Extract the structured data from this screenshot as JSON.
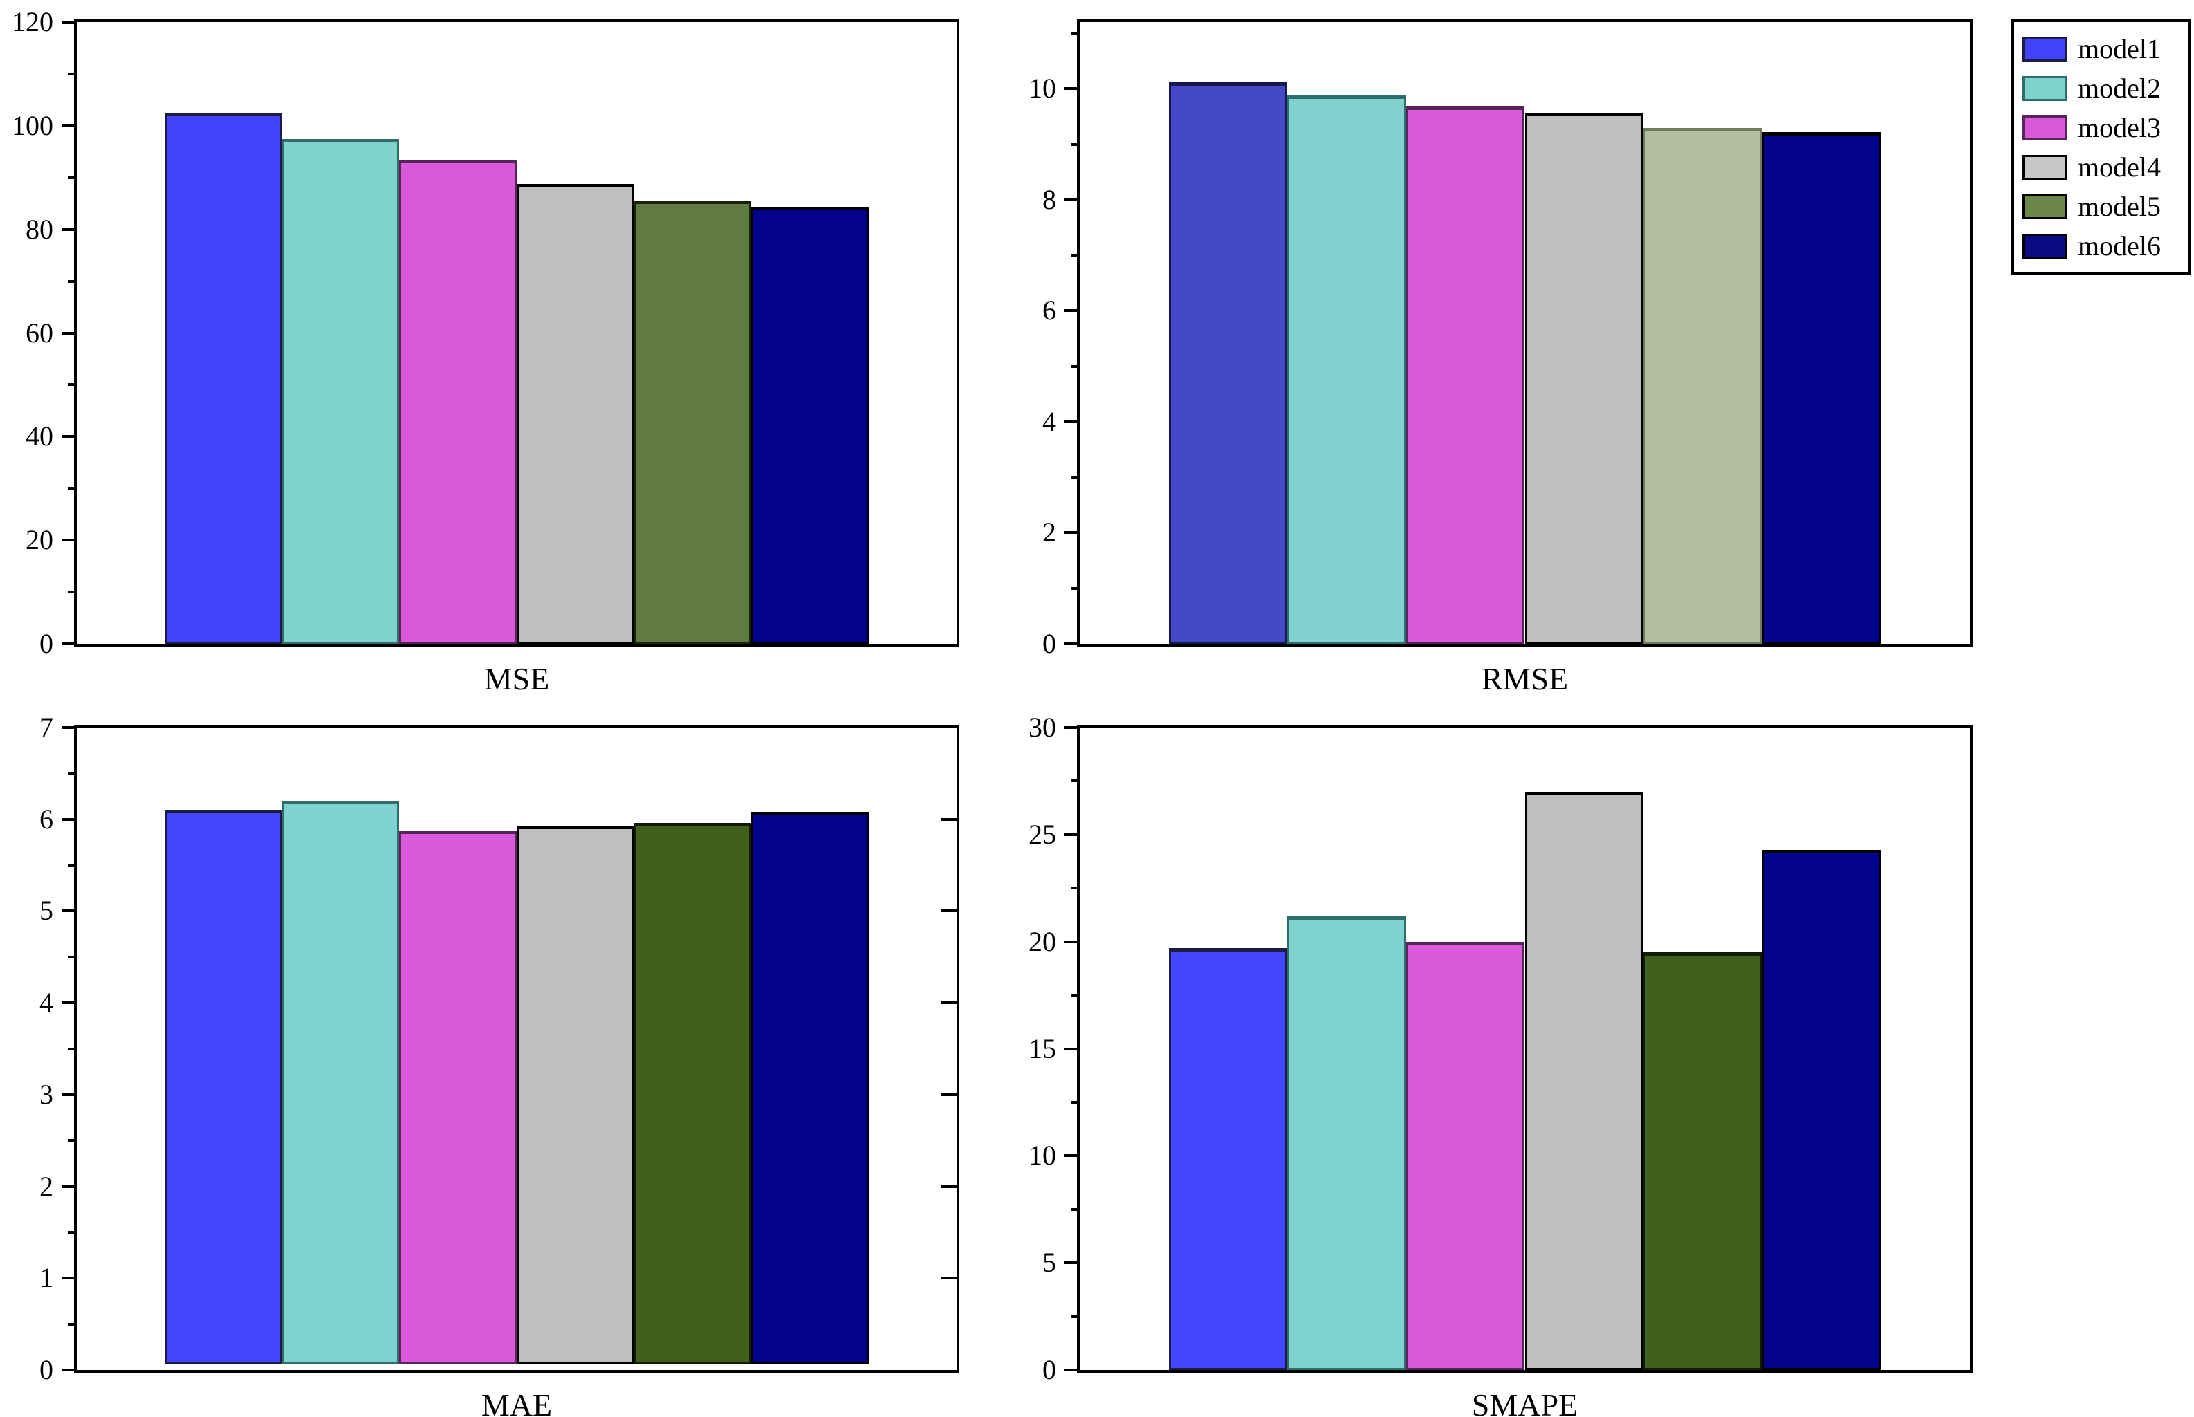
{
  "figure": {
    "background": "#ffffff",
    "description": "2x2 grid of bar charts comparing six models on four error metrics"
  },
  "legend": {
    "position": "top-right",
    "entries": [
      {
        "label": "model1",
        "color": "#4144fb",
        "border": "#1c1c45"
      },
      {
        "label": "model2",
        "color": "#80d2cd",
        "border": "#2e6e6b"
      },
      {
        "label": "model3",
        "color": "#d95ad9",
        "border": "#572459"
      },
      {
        "label": "model4",
        "color": "#c6c6c6",
        "border": "#000000"
      },
      {
        "label": "model5",
        "color": "#6b8747",
        "border": "#000000"
      },
      {
        "label": "model6",
        "color": "#0a0a85",
        "border": "#000000"
      }
    ]
  },
  "chart_data": [
    {
      "type": "bar",
      "title": "MSE",
      "categories": [
        "model1",
        "model2",
        "model3",
        "model4",
        "model5",
        "model6"
      ],
      "values": [
        102.5,
        97.5,
        93.5,
        88.8,
        85.5,
        84.3
      ],
      "ylim": [
        0,
        120
      ],
      "ytick_step": 20,
      "yminor_step": 10,
      "grid": false,
      "bar_colors": [
        "#4144fb",
        "#80d2cd",
        "#d95ad9",
        "#bfbfc1",
        "#5f7b42",
        "#02028c"
      ],
      "bar_edge_colors": [
        "#1c1c45",
        "#2e6e6b",
        "#572459",
        "#000000",
        "#16230a",
        "#000000"
      ]
    },
    {
      "type": "bar",
      "title": "RMSE",
      "categories": [
        "model1",
        "model2",
        "model3",
        "model4",
        "model5",
        "model6"
      ],
      "values": [
        10.12,
        9.88,
        9.68,
        9.57,
        9.3,
        9.22
      ],
      "ylim": [
        0,
        11.2
      ],
      "ytick_step": 2,
      "yminor_step": 1,
      "grid": false,
      "bar_colors": [
        "#4549c8",
        "#82d2d0",
        "#d75ad9",
        "#c0c0c3",
        "#b3bda0",
        "#03038b"
      ],
      "bar_edge_colors": [
        "#16184a",
        "#2e6e6b",
        "#572459",
        "#000000",
        "#6f7b5e",
        "#000000"
      ]
    },
    {
      "type": "bar",
      "title": "MAE",
      "categories": [
        "model1",
        "model2",
        "model3",
        "model4",
        "model5",
        "model6"
      ],
      "values": [
        6.1,
        6.2,
        5.88,
        5.93,
        5.96,
        6.08
      ],
      "ylim": [
        0,
        7
      ],
      "ytick_step": 1,
      "yminor_step": 0.5,
      "bar_bottom": 0.07,
      "right_ticks": true,
      "grid": false,
      "bar_colors": [
        "#4346fb",
        "#80d2cf",
        "#d95bdc",
        "#bfbfc1",
        "#40601c",
        "#02028c"
      ],
      "bar_edge_colors": [
        "#1c1c45",
        "#2e6e6b",
        "#572459",
        "#000000",
        "#101c06",
        "#000000"
      ]
    },
    {
      "type": "bar",
      "title": "SMAPE",
      "categories": [
        "model1",
        "model2",
        "model3",
        "model4",
        "model5",
        "model6"
      ],
      "values": [
        19.7,
        21.2,
        20.0,
        27.0,
        19.5,
        24.3
      ],
      "ylim": [
        0,
        30
      ],
      "ytick_step": 5,
      "yminor_step": 2.5,
      "grid": false,
      "bar_colors": [
        "#4346fb",
        "#80d2cf",
        "#d95bdc",
        "#bfbfc1",
        "#40601c",
        "#02028c"
      ],
      "bar_edge_colors": [
        "#1c1c45",
        "#2e6e6b",
        "#572459",
        "#000000",
        "#101c06",
        "#000000"
      ]
    }
  ]
}
